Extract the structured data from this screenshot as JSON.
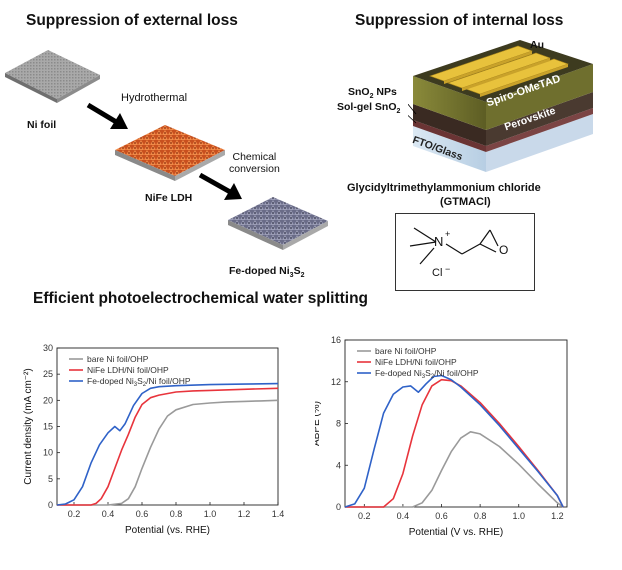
{
  "titles": {
    "external": "Suppression of external loss",
    "internal": "Suppression of internal loss",
    "efficient": "Efficient photoelectrochemical water splitting"
  },
  "external": {
    "ni_foil": "Ni foil",
    "hydrothermal": "Hydrothermal",
    "nife_ldh": "NiFe LDH",
    "chemical": "Chemical",
    "conversion": "conversion",
    "product_prefix": "Fe-doped Ni",
    "product_sub1": "3",
    "product_mid": "S",
    "product_sub2": "2"
  },
  "internal": {
    "au": "Au",
    "sno2_np_prefix": "SnO",
    "sno2_np_sub": "2",
    "sno2_np_suffix": " NPs",
    "solgel_prefix": "Sol-gel SnO",
    "solgel_sub": "2",
    "spiro": "Spiro-OMeTAD",
    "perovskite": "Perovskite",
    "fto": "FTO/Glass",
    "gtmacl_name": "Glycidyltrimethylammonium chloride",
    "gtmacl_abbr": "(GTMACl)",
    "n_plus": "N",
    "plus": "+",
    "o_atom": "O",
    "cl_minus": "Cl",
    "minus": "−"
  },
  "chart_data": [
    {
      "type": "line",
      "xlabel": "Potential (vs. RHE)",
      "ylabel": "Current density (mA cm⁻²)",
      "xlim": [
        0.1,
        1.4
      ],
      "ylim": [
        0,
        30
      ],
      "xticks": [
        "0.2",
        "0.4",
        "0.6",
        "0.8",
        "1.0",
        "1.2",
        "1.4"
      ],
      "yticks": [
        "0",
        "5",
        "10",
        "15",
        "20",
        "25",
        "30"
      ],
      "legend_position": "top-left",
      "series": [
        {
          "name": "bare Ni foil/OHP",
          "color": "#9a9a9a",
          "x": [
            0.1,
            0.4,
            0.48,
            0.52,
            0.56,
            0.6,
            0.65,
            0.7,
            0.75,
            0.8,
            0.9,
            1.0,
            1.1,
            1.2,
            1.3,
            1.4
          ],
          "y": [
            0,
            0,
            0.3,
            1.2,
            3.5,
            7,
            11,
            14.5,
            17,
            18.2,
            19.2,
            19.5,
            19.7,
            19.8,
            19.9,
            20
          ]
        },
        {
          "name": "NiFe LDH/Ni foil/OHP",
          "color": "#e8343c",
          "x": [
            0.1,
            0.3,
            0.33,
            0.36,
            0.4,
            0.44,
            0.48,
            0.52,
            0.56,
            0.6,
            0.65,
            0.7,
            0.8,
            0.9,
            1.0,
            1.2,
            1.4
          ],
          "y": [
            0,
            0,
            0.3,
            1.2,
            3.5,
            7,
            10.5,
            13.5,
            16.8,
            19.2,
            20.5,
            21,
            21.6,
            21.8,
            21.9,
            22.1,
            22.3
          ]
        },
        {
          "name": "Fe-doped Ni3S2/Ni foil/OHP",
          "color": "#2f62c8",
          "x": [
            0.1,
            0.15,
            0.2,
            0.25,
            0.3,
            0.35,
            0.4,
            0.44,
            0.47,
            0.5,
            0.55,
            0.6,
            0.65,
            0.7,
            0.8,
            1.0,
            1.2,
            1.4
          ],
          "y": [
            0,
            0.2,
            1,
            3.5,
            8,
            11.5,
            13.8,
            15,
            14.2,
            15.5,
            19,
            21.3,
            22.3,
            22.6,
            22.8,
            23,
            23.1,
            23.2
          ]
        }
      ]
    },
    {
      "type": "line",
      "xlabel": "Potential (V vs. RHE)",
      "ylabel": "ABPE (%)",
      "xlim": [
        0.1,
        1.25
      ],
      "ylim": [
        0,
        16
      ],
      "xticks": [
        "0.2",
        "0.4",
        "0.6",
        "0.8",
        "1.0",
        "1.2"
      ],
      "yticks": [
        "0",
        "4",
        "8",
        "12",
        "16"
      ],
      "legend_position": "top-left",
      "series": [
        {
          "name": "bare Ni foil/OHP",
          "color": "#9a9a9a",
          "x": [
            0.1,
            0.45,
            0.5,
            0.55,
            0.6,
            0.65,
            0.7,
            0.75,
            0.8,
            0.9,
            1.0,
            1.1,
            1.2,
            1.23
          ],
          "y": [
            0,
            0,
            0.4,
            1.6,
            3.5,
            5.3,
            6.6,
            7.2,
            7.0,
            5.8,
            4.1,
            2.2,
            0.4,
            0
          ]
        },
        {
          "name": "NiFe LDH/Ni foil/OHP",
          "color": "#e8343c",
          "x": [
            0.1,
            0.3,
            0.35,
            0.4,
            0.45,
            0.5,
            0.55,
            0.6,
            0.65,
            0.7,
            0.8,
            0.9,
            1.0,
            1.1,
            1.2,
            1.23
          ],
          "y": [
            0,
            0,
            0.8,
            3.2,
            6.8,
            9.8,
            11.6,
            12.2,
            12.1,
            11.6,
            10,
            8,
            5.8,
            3.5,
            1.1,
            0
          ]
        },
        {
          "name": "Fe-doped Ni3S2/Ni foil/OHP",
          "color": "#2f62c8",
          "x": [
            0.1,
            0.15,
            0.2,
            0.25,
            0.3,
            0.35,
            0.4,
            0.44,
            0.48,
            0.52,
            0.56,
            0.6,
            0.65,
            0.7,
            0.8,
            0.9,
            1.0,
            1.1,
            1.2,
            1.23
          ],
          "y": [
            0,
            0.3,
            1.8,
            5.5,
            9,
            10.8,
            11.5,
            11.6,
            11,
            11.8,
            12.5,
            12.6,
            12.2,
            11.5,
            9.8,
            7.8,
            5.6,
            3.4,
            1.1,
            0
          ]
        }
      ]
    }
  ]
}
